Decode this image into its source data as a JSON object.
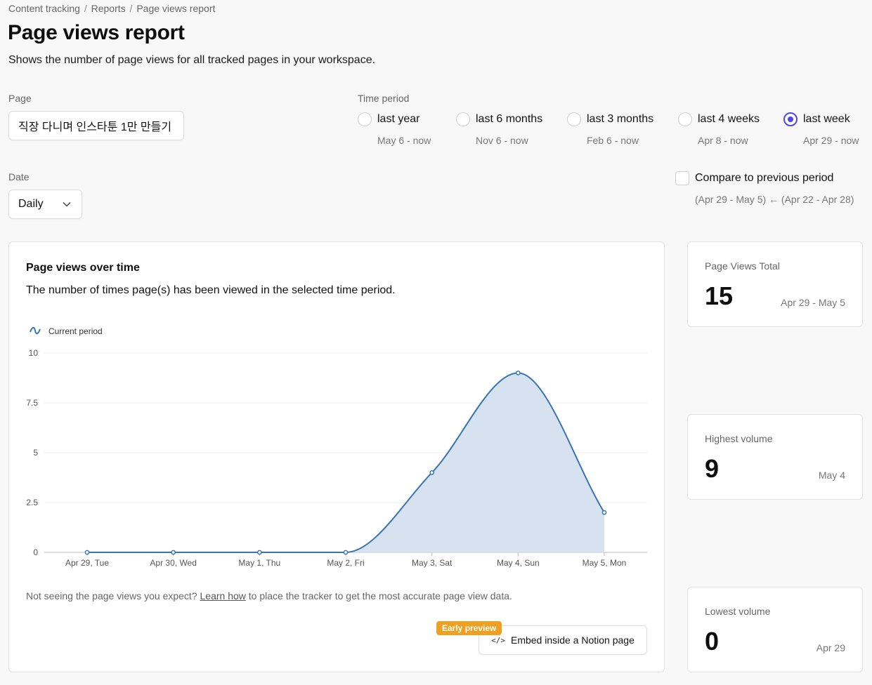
{
  "breadcrumb": [
    "Content tracking",
    "Reports",
    "Page views report"
  ],
  "page": {
    "title": "Page views report",
    "subtitle": "Shows the number of page views for all tracked pages in your workspace."
  },
  "filters": {
    "page_label": "Page",
    "page_value": "직장 다니며 인스타툰 1만 만들기",
    "time_period_label": "Time period",
    "time_periods": [
      {
        "label": "last year",
        "range": "May 6 - now",
        "checked": false
      },
      {
        "label": "last 6 months",
        "range": "Nov 6 - now",
        "checked": false
      },
      {
        "label": "last 3 months",
        "range": "Feb 6 - now",
        "checked": false
      },
      {
        "label": "last 4 weeks",
        "range": "Apr 8 - now",
        "checked": false
      },
      {
        "label": "last week",
        "range": "Apr 29 - now",
        "checked": true
      }
    ],
    "date_label": "Date",
    "date_value": "Daily",
    "compare_label": "Compare to previous period",
    "compare_checked": false,
    "compare_range": "(Apr 29 - May 5) ← (Apr 22 - Apr 28)"
  },
  "chart_card": {
    "title": "Page views over time",
    "description": "The number of times page(s) has been viewed in the selected time period.",
    "note_before": "Not seeing the page views you expect?",
    "note_link": "Learn how",
    "note_after": "to place the tracker to get the most accurate page view data.",
    "embed_label": "Embed inside a Notion page",
    "badge": "Early preview"
  },
  "chart_data": {
    "type": "area",
    "categories": [
      "Apr 29, Tue",
      "Apr 30, Wed",
      "May 1, Thu",
      "May 2, Fri",
      "May 3, Sat",
      "May 4, Sun",
      "May 5, Mon"
    ],
    "series": [
      {
        "name": "Current period",
        "values": [
          0,
          0,
          0,
          0,
          4,
          9,
          2
        ]
      }
    ],
    "ylim": [
      0,
      10
    ],
    "yticks": [
      0,
      2.5,
      5,
      7.5,
      10
    ],
    "ytick_labels": [
      "0",
      "2.5",
      "5",
      "7.5",
      "10"
    ],
    "grid": true,
    "legend": "top-left",
    "line_color": "#3b74b2",
    "fill_color": "#d6e2ef"
  },
  "stats": [
    {
      "label": "Page Views Total",
      "value": "15",
      "range": "Apr 29 - May 5"
    },
    {
      "label": "Highest volume",
      "value": "9",
      "range": "May 4"
    },
    {
      "label": "Lowest volume",
      "value": "0",
      "range": "Apr 29"
    }
  ]
}
